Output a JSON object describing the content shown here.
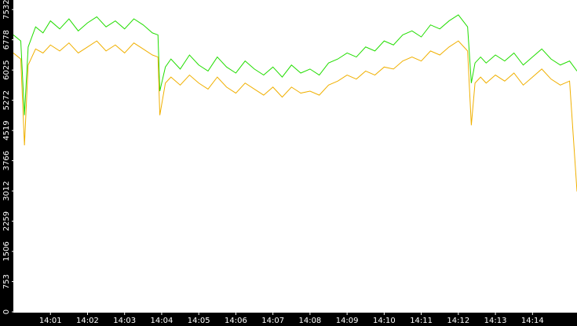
{
  "chart_data": {
    "type": "line",
    "x": [
      0,
      0.2,
      0.3,
      0.4,
      0.6,
      0.8,
      1,
      1.25,
      1.5,
      1.75,
      2,
      2.25,
      2.5,
      2.75,
      3,
      3.25,
      3.5,
      3.75,
      3.9,
      3.95,
      4.1,
      4.25,
      4.5,
      4.75,
      5,
      5.25,
      5.5,
      5.75,
      6,
      6.25,
      6.5,
      6.75,
      7,
      7.25,
      7.5,
      7.75,
      8,
      8.25,
      8.5,
      8.75,
      9,
      9.25,
      9.5,
      9.75,
      10,
      10.25,
      10.5,
      10.75,
      11,
      11.25,
      11.5,
      11.75,
      12,
      12.25,
      12.35,
      12.45,
      12.6,
      12.75,
      13,
      13.25,
      13.5,
      13.75,
      14,
      14.25,
      14.5,
      14.75,
      15,
      15.2
    ],
    "series": [
      {
        "color": "#22dd00",
        "values": [
          6900,
          6750,
          4900,
          6600,
          7100,
          6950,
          7250,
          7050,
          7300,
          7000,
          7200,
          7350,
          7100,
          7250,
          7050,
          7300,
          7150,
          6950,
          6900,
          5500,
          6100,
          6300,
          6050,
          6400,
          6150,
          6000,
          6350,
          6100,
          5950,
          6250,
          6050,
          5900,
          6100,
          5850,
          6150,
          5950,
          6050,
          5900,
          6200,
          6300,
          6450,
          6350,
          6600,
          6500,
          6750,
          6650,
          6900,
          7000,
          6850,
          7150,
          7050,
          7250,
          7400,
          7100,
          5700,
          6200,
          6350,
          6200,
          6400,
          6250,
          6450,
          6150,
          6350,
          6550,
          6300,
          6150,
          6250,
          6000
        ]
      },
      {
        "color": "#f0b000",
        "values": [
          6450,
          6300,
          4150,
          6150,
          6550,
          6450,
          6650,
          6500,
          6700,
          6450,
          6600,
          6750,
          6500,
          6650,
          6450,
          6700,
          6550,
          6400,
          6350,
          4900,
          5700,
          5850,
          5650,
          5900,
          5700,
          5550,
          5850,
          5600,
          5450,
          5700,
          5550,
          5400,
          5600,
          5350,
          5600,
          5450,
          5500,
          5400,
          5650,
          5750,
          5900,
          5800,
          6000,
          5900,
          6100,
          6050,
          6250,
          6350,
          6250,
          6500,
          6400,
          6600,
          6750,
          6500,
          4650,
          5700,
          5850,
          5700,
          5900,
          5750,
          5950,
          5650,
          5850,
          6050,
          5800,
          5650,
          5750,
          3000
        ]
      }
    ],
    "xlim": [
      0,
      15.2
    ],
    "xticks": [
      {
        "value": 1,
        "label": "14:01"
      },
      {
        "value": 2,
        "label": "14:02"
      },
      {
        "value": 3,
        "label": "14:03"
      },
      {
        "value": 4,
        "label": "14:04"
      },
      {
        "value": 5,
        "label": "14:05"
      },
      {
        "value": 6,
        "label": "14:06"
      },
      {
        "value": 7,
        "label": "14:07"
      },
      {
        "value": 8,
        "label": "14:08"
      },
      {
        "value": 9,
        "label": "14:09"
      },
      {
        "value": 10,
        "label": "14:10"
      },
      {
        "value": 11,
        "label": "14:11"
      },
      {
        "value": 12,
        "label": "14:12"
      },
      {
        "value": 13,
        "label": "14:13"
      },
      {
        "value": 14,
        "label": "14:14"
      }
    ],
    "ylim": [
      0,
      7770
    ],
    "yticks": [
      0,
      753,
      1506,
      2259,
      3012,
      3766,
      4519,
      5272,
      6025,
      6778,
      7532
    ],
    "grid": false
  }
}
